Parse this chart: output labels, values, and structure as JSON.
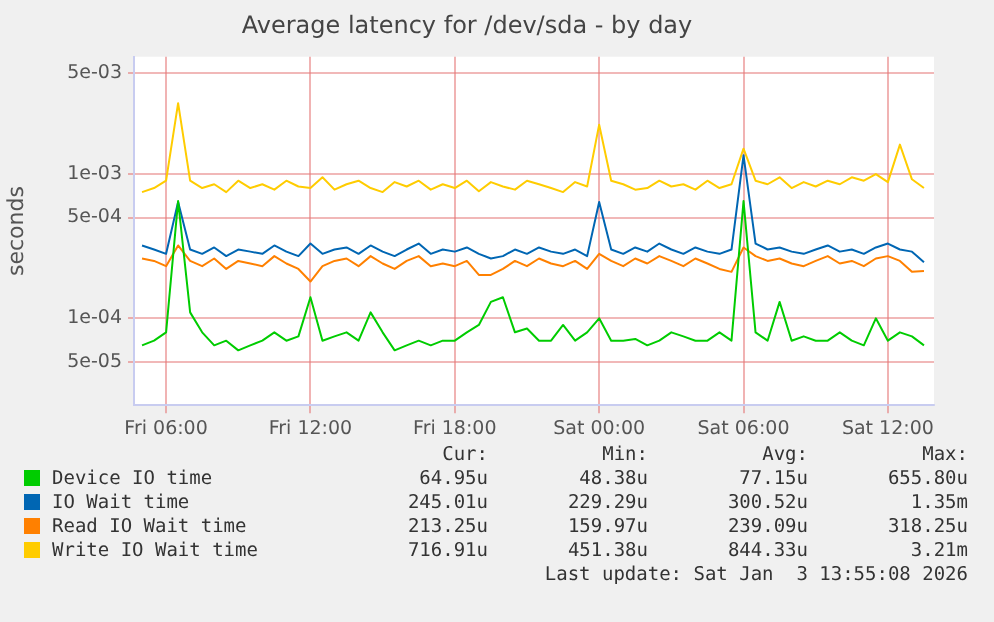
{
  "chart_data": {
    "type": "line",
    "title": "Average latency for /dev/sda - by day",
    "ylabel": "seconds",
    "log": "y",
    "grid": true,
    "legend": "bottom",
    "marker": "none",
    "line_style": "solid",
    "xlim": [
      "2026-01-02T04:40",
      "2026-01-03T13:55"
    ],
    "xticks": [
      {
        "value": "2026-01-02T06:00",
        "label": "Fri 06:00"
      },
      {
        "value": "2026-01-02T12:00",
        "label": "Fri 12:00"
      },
      {
        "value": "2026-01-02T18:00",
        "label": "Fri 18:00"
      },
      {
        "value": "2026-01-03T00:00",
        "label": "Sat 00:00"
      },
      {
        "value": "2026-01-03T06:00",
        "label": "Sat 06:00"
      },
      {
        "value": "2026-01-03T12:00",
        "label": "Sat 12:00"
      }
    ],
    "ylim": [
      2.5e-05,
      0.0065
    ],
    "yticks": [
      {
        "value": 5e-05,
        "label": "5e-05"
      },
      {
        "value": 0.0001,
        "label": "1e-04"
      },
      {
        "value": 0.0005,
        "label": "5e-04"
      },
      {
        "value": 0.001,
        "label": "1e-03"
      },
      {
        "value": 0.005,
        "label": "5e-03"
      }
    ],
    "x": [
      "2026-01-02T05:00",
      "2026-01-02T05:30",
      "2026-01-02T06:00",
      "2026-01-02T06:30",
      "2026-01-02T07:00",
      "2026-01-02T07:30",
      "2026-01-02T08:00",
      "2026-01-02T08:30",
      "2026-01-02T09:00",
      "2026-01-02T09:30",
      "2026-01-02T10:00",
      "2026-01-02T10:30",
      "2026-01-02T11:00",
      "2026-01-02T11:30",
      "2026-01-02T12:00",
      "2026-01-02T12:30",
      "2026-01-02T13:00",
      "2026-01-02T13:30",
      "2026-01-02T14:00",
      "2026-01-02T14:30",
      "2026-01-02T15:00",
      "2026-01-02T15:30",
      "2026-01-02T16:00",
      "2026-01-02T16:30",
      "2026-01-02T17:00",
      "2026-01-02T17:30",
      "2026-01-02T18:00",
      "2026-01-02T18:30",
      "2026-01-02T19:00",
      "2026-01-02T19:30",
      "2026-01-02T20:00",
      "2026-01-02T20:30",
      "2026-01-02T21:00",
      "2026-01-02T21:30",
      "2026-01-02T22:00",
      "2026-01-02T22:30",
      "2026-01-02T23:00",
      "2026-01-02T23:30",
      "2026-01-03T00:00",
      "2026-01-03T00:30",
      "2026-01-03T01:00",
      "2026-01-03T01:30",
      "2026-01-03T02:00",
      "2026-01-03T02:30",
      "2026-01-03T03:00",
      "2026-01-03T03:30",
      "2026-01-03T04:00",
      "2026-01-03T04:30",
      "2026-01-03T05:00",
      "2026-01-03T05:30",
      "2026-01-03T06:00",
      "2026-01-03T06:30",
      "2026-01-03T07:00",
      "2026-01-03T07:30",
      "2026-01-03T08:00",
      "2026-01-03T08:30",
      "2026-01-03T09:00",
      "2026-01-03T09:30",
      "2026-01-03T10:00",
      "2026-01-03T10:30",
      "2026-01-03T11:00",
      "2026-01-03T11:30",
      "2026-01-03T12:00",
      "2026-01-03T12:30",
      "2026-01-03T13:00",
      "2026-01-03T13:30"
    ],
    "series": [
      {
        "name": "Device IO time",
        "color": "#00cc00",
        "values": [
          6.5e-05,
          7e-05,
          8e-05,
          0.00065,
          0.00011,
          8e-05,
          6.5e-05,
          7e-05,
          6e-05,
          6.5e-05,
          7e-05,
          8e-05,
          7e-05,
          7.5e-05,
          0.00014,
          7e-05,
          7.5e-05,
          8e-05,
          7e-05,
          0.00011,
          8e-05,
          6e-05,
          6.5e-05,
          7e-05,
          6.5e-05,
          7e-05,
          7e-05,
          8e-05,
          9e-05,
          0.00013,
          0.00014,
          8e-05,
          8.5e-05,
          7e-05,
          7e-05,
          9e-05,
          7e-05,
          8e-05,
          0.0001,
          7e-05,
          7e-05,
          7.2e-05,
          6.5e-05,
          7e-05,
          8e-05,
          7.5e-05,
          7e-05,
          7e-05,
          8e-05,
          7e-05,
          0.00065,
          8e-05,
          7e-05,
          0.00013,
          7e-05,
          7.5e-05,
          7e-05,
          7e-05,
          8e-05,
          7e-05,
          6.5e-05,
          0.0001,
          7e-05,
          8e-05,
          7.5e-05,
          6.5e-05
        ]
      },
      {
        "name": "IO Wait time",
        "color": "#0066b3",
        "values": [
          0.00032,
          0.0003,
          0.00028,
          0.00064,
          0.0003,
          0.00028,
          0.00031,
          0.00027,
          0.0003,
          0.00029,
          0.00028,
          0.00032,
          0.00029,
          0.00027,
          0.00033,
          0.00028,
          0.0003,
          0.00031,
          0.00028,
          0.00032,
          0.00029,
          0.00027,
          0.0003,
          0.00033,
          0.00028,
          0.0003,
          0.00029,
          0.00031,
          0.00028,
          0.00026,
          0.00027,
          0.0003,
          0.00028,
          0.00031,
          0.00029,
          0.00028,
          0.0003,
          0.00027,
          0.00064,
          0.0003,
          0.00028,
          0.00031,
          0.00029,
          0.00033,
          0.0003,
          0.00028,
          0.00031,
          0.00029,
          0.00028,
          0.0003,
          0.00135,
          0.00033,
          0.0003,
          0.00031,
          0.00029,
          0.00028,
          0.0003,
          0.00032,
          0.00029,
          0.0003,
          0.00028,
          0.00031,
          0.00033,
          0.0003,
          0.00029,
          0.000245
        ]
      },
      {
        "name": "Read IO Wait time",
        "color": "#ff8000",
        "values": [
          0.00026,
          0.00025,
          0.00023,
          0.00032,
          0.00025,
          0.00023,
          0.00026,
          0.00022,
          0.00025,
          0.00024,
          0.00023,
          0.00027,
          0.00024,
          0.00022,
          0.00018,
          0.00023,
          0.00025,
          0.00026,
          0.00023,
          0.00027,
          0.00024,
          0.00022,
          0.00025,
          0.00027,
          0.00023,
          0.00024,
          0.00023,
          0.00025,
          0.0002,
          0.0002,
          0.00022,
          0.00025,
          0.00023,
          0.00026,
          0.00024,
          0.00023,
          0.00025,
          0.00022,
          0.00028,
          0.00025,
          0.00023,
          0.00026,
          0.00024,
          0.00027,
          0.00025,
          0.00023,
          0.00026,
          0.00024,
          0.00022,
          0.00021,
          0.00031,
          0.00027,
          0.00025,
          0.00026,
          0.00024,
          0.00023,
          0.00025,
          0.00027,
          0.00024,
          0.00025,
          0.00023,
          0.00026,
          0.00027,
          0.00025,
          0.00021,
          0.000213
        ]
      },
      {
        "name": "Write IO Wait time",
        "color": "#ffcc00",
        "values": [
          0.00075,
          0.0008,
          0.0009,
          0.0031,
          0.0009,
          0.0008,
          0.00085,
          0.00075,
          0.0009,
          0.0008,
          0.00085,
          0.00078,
          0.0009,
          0.00082,
          0.0008,
          0.00095,
          0.00078,
          0.00085,
          0.0009,
          0.0008,
          0.00075,
          0.00088,
          0.00082,
          0.0009,
          0.00078,
          0.00085,
          0.0008,
          0.0009,
          0.00076,
          0.00088,
          0.00082,
          0.00078,
          0.0009,
          0.00085,
          0.0008,
          0.00075,
          0.00088,
          0.00082,
          0.0022,
          0.0009,
          0.00085,
          0.00078,
          0.0008,
          0.0009,
          0.00082,
          0.00085,
          0.00078,
          0.0009,
          0.0008,
          0.00085,
          0.0015,
          0.0009,
          0.00085,
          0.00095,
          0.0008,
          0.00088,
          0.00082,
          0.0009,
          0.00085,
          0.00095,
          0.0009,
          0.001,
          0.00088,
          0.0016,
          0.00092,
          0.0008
        ]
      }
    ],
    "annotations": [
      "Cur:",
      "Min:",
      "Avg:",
      "Max:",
      "64.95u",
      "48.38u",
      "77.15u",
      "655.80u",
      "245.01u",
      "229.29u",
      "300.52u",
      "1.35m",
      "213.25u",
      "159.97u",
      "239.09u",
      "318.25u",
      "716.91u",
      "451.38u",
      "844.33u",
      "3.21m",
      "Last update: Sat Jan  3 13:55:08 2026"
    ]
  }
}
